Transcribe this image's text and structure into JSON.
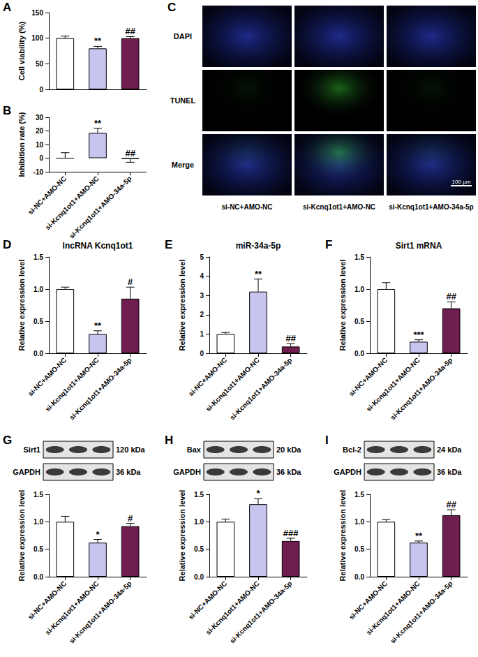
{
  "chart_data": [
    {
      "panel": "A",
      "type": "bar",
      "y_label": "Cell viability (%)",
      "categories": [
        "si-NC+AMO-NC",
        "si-Kcnq1ot1+AMO-NC",
        "si-Kcnq1ot1+AMO-34a-5p"
      ],
      "values": [
        100,
        80,
        100
      ],
      "errors": [
        4,
        4,
        3
      ],
      "significance": [
        null,
        "**",
        "##"
      ],
      "colors": [
        "#ffffff",
        "#c7c5f0",
        "#6e1d4e"
      ],
      "ylim": [
        0,
        150
      ],
      "yticks": [
        0,
        50,
        100,
        150
      ],
      "tick_labels": "y",
      "grid": false
    },
    {
      "panel": "B",
      "type": "bar",
      "y_label": "Inhibition rate (%)",
      "categories": [
        "si-NC+AMO-NC",
        "si-Kcnq1ot1+AMO-NC",
        "si-Kcnq1ot1+AMO-34a-5p"
      ],
      "values": [
        0,
        18.5,
        -0.5
      ],
      "errors": [
        4,
        3.5,
        2.5
      ],
      "significance": [
        null,
        "**",
        "##"
      ],
      "colors": [
        "#ffffff",
        "#c7c5f0",
        "#6e1d4e"
      ],
      "ylim": [
        -10,
        30
      ],
      "yticks": [
        -10,
        0,
        10,
        20,
        30
      ],
      "grid": false
    },
    {
      "panel": "D",
      "type": "bar",
      "title": "lncRNA Kcnq1ot1",
      "y_label": "Relative expression level",
      "categories": [
        "si-NC+AMO-NC",
        "si-Kcnq1ot1+AMO-NC",
        "si-Kcnq1ot1+AMO-34a-5p"
      ],
      "values": [
        1.0,
        0.3,
        0.85
      ],
      "errors": [
        0.03,
        0.05,
        0.18
      ],
      "significance": [
        null,
        "**",
        "#"
      ],
      "colors": [
        "#ffffff",
        "#c7c5f0",
        "#6e1d4e"
      ],
      "ylim": [
        0,
        1.5
      ],
      "yticks": [
        {
          "value": 0,
          "label": "0.0"
        },
        {
          "value": 0.5,
          "label": "0.5"
        },
        {
          "value": 1,
          "label": "1.0"
        },
        {
          "value": 1.5,
          "label": "1.5"
        }
      ],
      "grid": false
    },
    {
      "panel": "E",
      "type": "bar",
      "title": "miR-34a-5p",
      "y_label": "Relative expression level",
      "categories": [
        "si-NC+AMO-NC",
        "si-Kcnq1ot1+AMO-NC",
        "si-Kcnq1ot1+AMO-34a-5p"
      ],
      "values": [
        1.0,
        3.2,
        0.35
      ],
      "errors": [
        0.08,
        0.65,
        0.15
      ],
      "significance": [
        null,
        "**",
        "##"
      ],
      "colors": [
        "#ffffff",
        "#c7c5f0",
        "#6e1d4e"
      ],
      "ylim": [
        0,
        5
      ],
      "yticks": [
        0,
        1,
        2,
        3,
        4,
        5
      ],
      "grid": false
    },
    {
      "panel": "F",
      "type": "bar",
      "title": "Sirt1 mRNA",
      "y_label": "Relative expression level",
      "categories": [
        "si-NC+AMO-NC",
        "si-Kcnq1ot1+AMO-NC",
        "si-Kcnq1ot1+AMO-34a-5p"
      ],
      "values": [
        1.0,
        0.18,
        0.7
      ],
      "errors": [
        0.1,
        0.03,
        0.1
      ],
      "significance": [
        null,
        "***",
        "##"
      ],
      "colors": [
        "#ffffff",
        "#c7c5f0",
        "#6e1d4e"
      ],
      "ylim": [
        0,
        1.5
      ],
      "yticks": [
        {
          "value": 0,
          "label": "0.0"
        },
        {
          "value": 0.5,
          "label": "0.5"
        },
        {
          "value": 1,
          "label": "1.0"
        },
        {
          "value": 1.5,
          "label": "1.5"
        }
      ],
      "grid": false
    },
    {
      "panel": "G",
      "type": "bar",
      "y_label": "Relative expression level",
      "blot": [
        {
          "protein": "Sirt1",
          "size": "120 kDa"
        },
        {
          "protein": "GAPDH",
          "size": "36 kDa"
        }
      ],
      "categories": [
        "si-NC+AMO-NC",
        "si-Kcnq1ot1+AMO-NC",
        "si-Kcnq1ot1+AMO-34a-5p"
      ],
      "values": [
        1.0,
        0.62,
        0.92
      ],
      "errors": [
        0.1,
        0.06,
        0.05
      ],
      "significance": [
        null,
        "*",
        "#"
      ],
      "colors": [
        "#ffffff",
        "#c7c5f0",
        "#6e1d4e"
      ],
      "ylim": [
        0,
        1.5
      ],
      "yticks": [
        {
          "value": 0,
          "label": "0.0"
        },
        {
          "value": 0.5,
          "label": "0.5"
        },
        {
          "value": 1,
          "label": "1.0"
        },
        {
          "value": 1.5,
          "label": "1.5"
        }
      ],
      "grid": false
    },
    {
      "panel": "H",
      "type": "bar",
      "y_label": "Relative expression level",
      "blot": [
        {
          "protein": "Bax",
          "size": "20 kDa"
        },
        {
          "protein": "GAPDH",
          "size": "36 kDa"
        }
      ],
      "categories": [
        "si-NC+AMO-NC",
        "si-Kcnq1ot1+AMO-NC",
        "si-Kcnq1ot1+AMO-34a-5p"
      ],
      "values": [
        1.0,
        1.32,
        0.65
      ],
      "errors": [
        0.05,
        0.1,
        0.05
      ],
      "significance": [
        null,
        "*",
        "###"
      ],
      "colors": [
        "#ffffff",
        "#c7c5f0",
        "#6e1d4e"
      ],
      "ylim": [
        0,
        1.5
      ],
      "yticks": [
        {
          "value": 0,
          "label": "0.0"
        },
        {
          "value": 0.5,
          "label": "0.5"
        },
        {
          "value": 1,
          "label": "1.0"
        },
        {
          "value": 1.5,
          "label": "1.5"
        }
      ],
      "grid": false
    },
    {
      "panel": "I",
      "type": "bar",
      "y_label": "Relative expression level",
      "blot": [
        {
          "protein": "Bcl-2",
          "size": "24 kDa"
        },
        {
          "protein": "GAPDH",
          "size": "36 kDa"
        }
      ],
      "categories": [
        "si-NC+AMO-NC",
        "si-Kcnq1ot1+AMO-NC",
        "si-Kcnq1ot1+AMO-34a-5p"
      ],
      "values": [
        1.0,
        0.62,
        1.12
      ],
      "errors": [
        0.04,
        0.03,
        0.1
      ],
      "significance": [
        null,
        "**",
        "##"
      ],
      "colors": [
        "#ffffff",
        "#c7c5f0",
        "#6e1d4e"
      ],
      "ylim": [
        0,
        1.5
      ],
      "yticks": [
        {
          "value": 0,
          "label": "0.0"
        },
        {
          "value": 0.5,
          "label": "0.5"
        },
        {
          "value": 1,
          "label": "1.0"
        },
        {
          "value": 1.5,
          "label": "1.5"
        }
      ],
      "grid": false
    }
  ],
  "panel_c": {
    "panel": "C",
    "rows": [
      "DAPI",
      "TUNEL",
      "Merge"
    ],
    "columns": [
      "si-NC+AMO-NC",
      "si-Kcnq1ot1+AMO-NC",
      "si-Kcnq1ot1+AMO-34a-5p"
    ],
    "scale_bar": "100 μm"
  }
}
